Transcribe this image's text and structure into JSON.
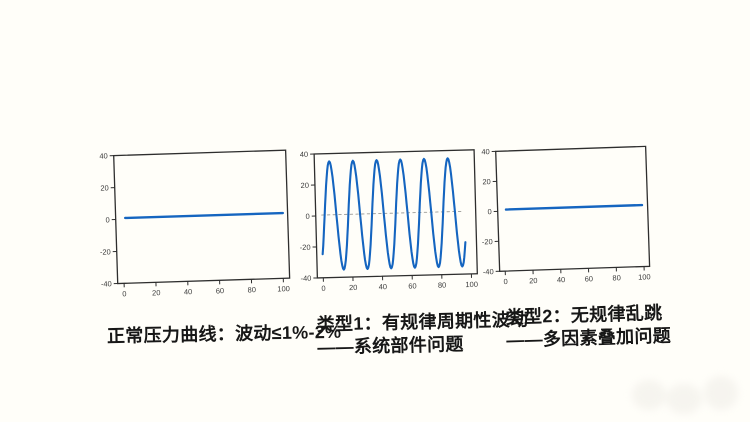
{
  "page": {
    "background_color": "#FFFEF9",
    "text_color": "#171717",
    "line_color": "#1565C0",
    "frame_color": "#2E2E2E",
    "tick_label_color": "#3A3A3A",
    "dashed_line_color": "#9A9A96"
  },
  "captions": [
    {
      "lines": [
        "正常压力曲线：波动≤1%-2%"
      ]
    },
    {
      "lines": [
        "类型1：有规律周期性波动",
        "——系统部件问题"
      ]
    },
    {
      "lines": [
        "类型2：无规律乱跳",
        "——多因素叠加问题"
      ]
    }
  ],
  "chart_data": [
    {
      "type": "line",
      "name": "normal-pressure-curve",
      "title": "",
      "caption": "正常压力曲线：波动≤1%-2%",
      "xlim": [
        -4,
        104
      ],
      "ylim": [
        -40,
        40
      ],
      "x_ticks": [
        0,
        20,
        40,
        60,
        80,
        100
      ],
      "y_ticks": [
        -40,
        -20,
        0,
        20,
        40
      ],
      "grid": false,
      "legend": false,
      "series": [
        {
          "name": "pressure",
          "kind": "flat",
          "y": 0.8,
          "x_start": 2,
          "x_end": 101,
          "color": "#1565C0",
          "width": 2.4,
          "dashed": false
        }
      ]
    },
    {
      "type": "line",
      "name": "type1-periodic-fluctuation",
      "title": "",
      "caption": "类型1：有规律周期性波动——系统部件问题",
      "xlim": [
        -4,
        104
      ],
      "ylim": [
        -40,
        40
      ],
      "x_ticks": [
        0,
        20,
        40,
        60,
        80,
        100
      ],
      "y_ticks": [
        -40,
        -20,
        0,
        20,
        40
      ],
      "grid": false,
      "legend": false,
      "series": [
        {
          "name": "zero-baseline",
          "kind": "flat",
          "y": 0.5,
          "x_start": 0,
          "x_end": 96,
          "color": "#9A9A96",
          "width": 0.9,
          "dashed": true
        },
        {
          "name": "pressure",
          "kind": "cosine",
          "amplitude": 35,
          "period": 16,
          "peak_x": 6,
          "x_start": 0,
          "x_end": 96.5,
          "color": "#1565C0",
          "width": 2.1,
          "dashed": false
        }
      ]
    },
    {
      "type": "line",
      "name": "type2-irregular-fluctuation",
      "title": "",
      "caption": "类型2：无规律乱跳——多因素叠加问题",
      "xlim": [
        -4,
        104
      ],
      "ylim": [
        -40,
        40
      ],
      "x_ticks": [
        0,
        20,
        40,
        60,
        80,
        100
      ],
      "y_ticks": [
        -40,
        -20,
        0,
        20,
        40
      ],
      "grid": false,
      "legend": false,
      "series": [
        {
          "name": "pressure",
          "kind": "flat",
          "y": 1,
          "x_start": 2,
          "x_end": 100,
          "color": "#1565C0",
          "width": 2.4,
          "dashed": false
        }
      ]
    }
  ]
}
